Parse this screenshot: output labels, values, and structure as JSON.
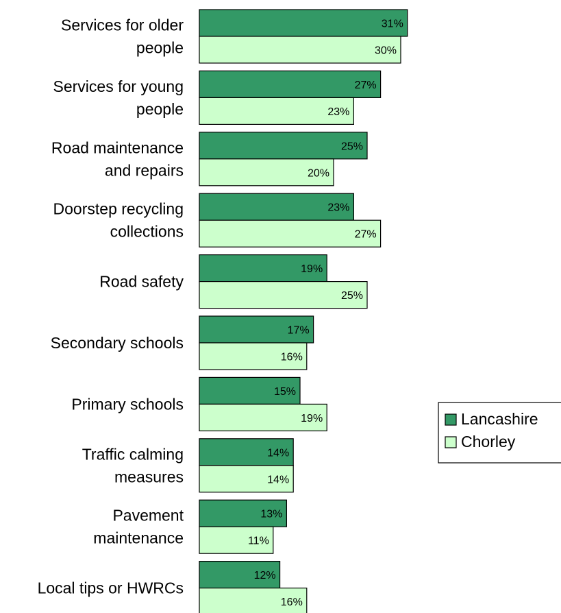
{
  "chart_data": {
    "type": "bar",
    "orientation": "horizontal",
    "categories": [
      [
        "Services for older",
        "people"
      ],
      [
        "Services for young",
        "people"
      ],
      [
        "Road maintenance",
        "and repairs"
      ],
      [
        "Doorstep recycling",
        "collections"
      ],
      [
        "Road safety"
      ],
      [
        "Secondary schools"
      ],
      [
        "Primary schools"
      ],
      [
        "Traffic calming",
        "measures"
      ],
      [
        "Pavement",
        "maintenance"
      ],
      [
        "Local tips or HWRCs"
      ]
    ],
    "series": [
      {
        "name": "Lancashire",
        "color": "#339966",
        "values": [
          31,
          27,
          25,
          23,
          19,
          17,
          15,
          14,
          13,
          12
        ]
      },
      {
        "name": "Chorley",
        "color": "#ccffcc",
        "values": [
          30,
          23,
          20,
          27,
          25,
          16,
          19,
          14,
          11,
          16
        ]
      }
    ],
    "value_suffix": "%",
    "xlim": [
      0,
      37
    ],
    "grid": false,
    "legend_position": "right"
  }
}
